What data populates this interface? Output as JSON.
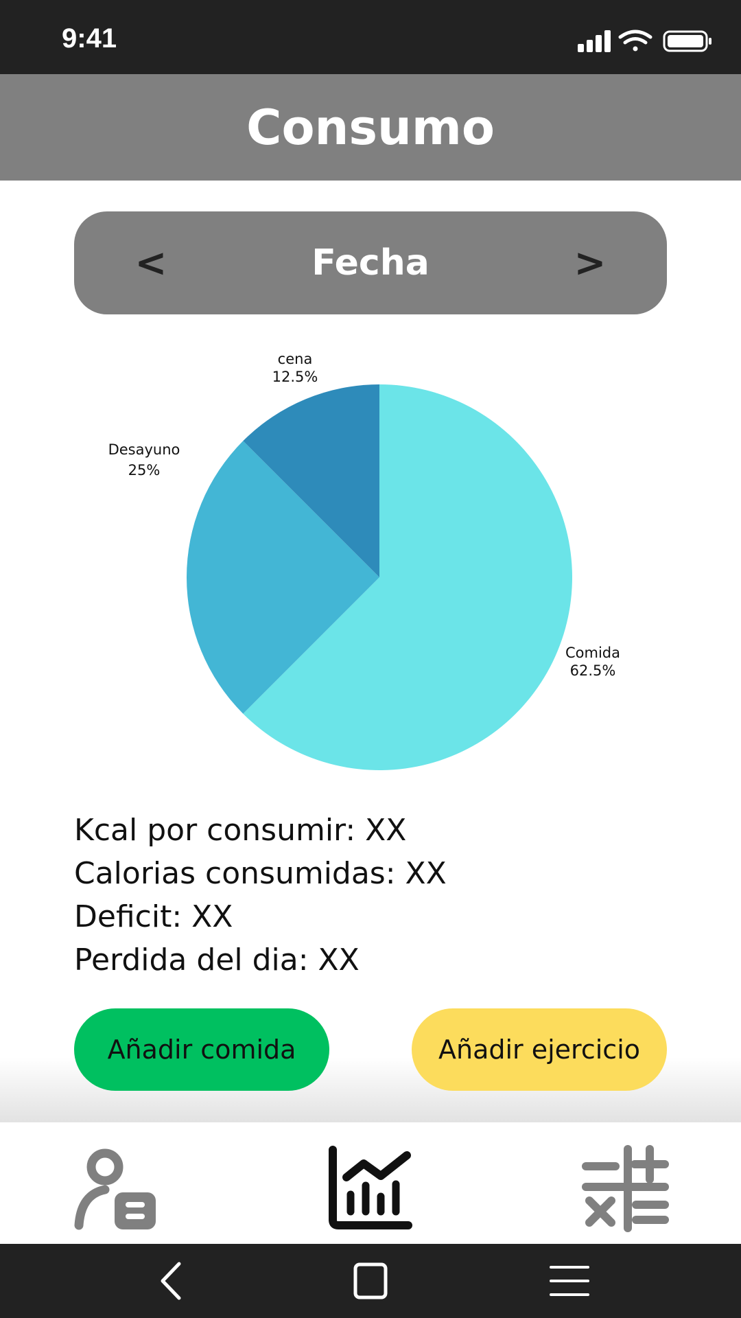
{
  "status_bar": {
    "time": "9:41"
  },
  "header": {
    "title": "Consumo"
  },
  "date_selector": {
    "prev_label": "<",
    "label": "Fecha",
    "next_label": ">"
  },
  "chart_data": {
    "type": "pie",
    "slices": [
      {
        "label": "Comida",
        "value": 62.5,
        "pct_label": "62.5%",
        "color": "#6be4e8"
      },
      {
        "label": "Desayuno",
        "value": 25,
        "pct_label": "25%",
        "color": "#43b6d5"
      },
      {
        "label": "cena",
        "value": 12.5,
        "pct_label": "12.5%",
        "color": "#2e8bba"
      }
    ]
  },
  "stats": {
    "kcal_por_consumir": "Kcal por consumir: XX",
    "calorias_consumidas": "Calorias consumidas: XX",
    "deficit": "Deficit: XX",
    "perdida_del_dia": "Perdida del dia: XX"
  },
  "actions": {
    "add_food": "Añadir comida",
    "add_food_color": "#00c060",
    "add_exercise": "Añadir ejercicio",
    "add_exercise_color": "#fcdc5c"
  },
  "tabs": [
    {
      "icon": "profile-icon",
      "active": false
    },
    {
      "icon": "chart-icon",
      "active": true
    },
    {
      "icon": "calculator-icon",
      "active": false
    }
  ],
  "system_nav": [
    "back-icon",
    "home-icon",
    "menu-icon"
  ]
}
